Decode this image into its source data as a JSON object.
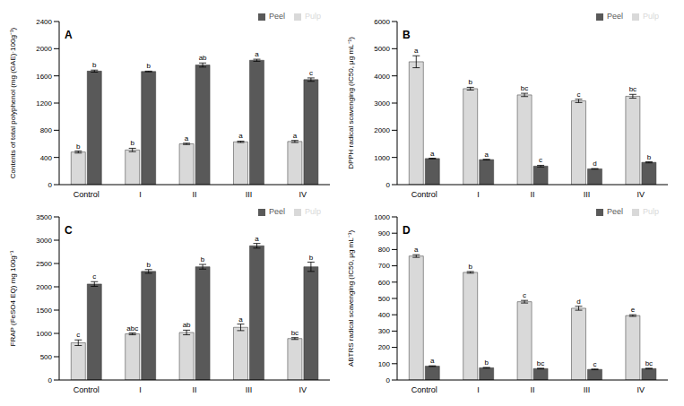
{
  "chart_data": [
    {
      "type": "bar",
      "title": "A",
      "y_label": "Contents of total polyphenol (mg (GAE)·100g⁻¹)",
      "categories": [
        "Control",
        "I",
        "II",
        "III",
        "IV"
      ],
      "series": [
        {
          "name": "Pulp",
          "color": "#d9d9d9",
          "values": [
            480,
            510,
            600,
            630,
            635
          ],
          "errors": [
            15,
            25,
            10,
            10,
            15
          ],
          "letters": [
            "b",
            "b",
            "a",
            "a",
            "a"
          ]
        },
        {
          "name": "Peel",
          "color": "#595959",
          "values": [
            1670,
            1665,
            1760,
            1830,
            1545
          ],
          "errors": [
            15,
            5,
            30,
            15,
            25
          ],
          "letters": [
            "b",
            "b",
            "ab",
            "a",
            "c"
          ]
        }
      ],
      "ylim": [
        0,
        2400
      ],
      "yticks": [
        0,
        400,
        800,
        1200,
        1600,
        2000,
        2400
      ],
      "grid": false,
      "legend": "upper right"
    },
    {
      "type": "bar",
      "title": "B",
      "y_label": "DPPH radical scavenging (IC50, μg mL⁻¹)",
      "categories": [
        "Control",
        "I",
        "II",
        "III",
        "IV"
      ],
      "series": [
        {
          "name": "Pulp",
          "color": "#d9d9d9",
          "values": [
            4520,
            3530,
            3300,
            3080,
            3250
          ],
          "errors": [
            220,
            50,
            60,
            60,
            70
          ],
          "letters": [
            "a",
            "b",
            "bc",
            "c",
            "bc"
          ]
        },
        {
          "name": "Peel",
          "color": "#595959",
          "values": [
            960,
            920,
            680,
            580,
            820
          ],
          "errors": [
            10,
            10,
            30,
            10,
            20
          ],
          "letters": [
            "a",
            "a",
            "c",
            "d",
            "b"
          ]
        }
      ],
      "ylim": [
        0,
        6000
      ],
      "yticks": [
        0,
        1000,
        2000,
        3000,
        4000,
        5000,
        6000
      ],
      "grid": false,
      "legend": "upper right"
    },
    {
      "type": "bar",
      "title": "C",
      "y_label": "FRAP (FeSO4 EQ) mg 100g⁻¹",
      "categories": [
        "Control",
        "I",
        "II",
        "III",
        "IV"
      ],
      "series": [
        {
          "name": "Pulp",
          "color": "#d9d9d9",
          "values": [
            800,
            990,
            1020,
            1130,
            890
          ],
          "errors": [
            60,
            20,
            50,
            70,
            20
          ],
          "letters": [
            "c",
            "abc",
            "ab",
            "a",
            "bc"
          ]
        },
        {
          "name": "Peel",
          "color": "#595959",
          "values": [
            2060,
            2330,
            2430,
            2880,
            2430
          ],
          "errors": [
            50,
            40,
            50,
            50,
            100
          ],
          "letters": [
            "c",
            "b",
            "b",
            "a",
            "b"
          ]
        }
      ],
      "ylim": [
        0,
        3500
      ],
      "yticks": [
        0,
        500,
        1000,
        1500,
        2000,
        2500,
        3000,
        3500
      ],
      "grid": false,
      "legend": "upper right"
    },
    {
      "type": "bar",
      "title": "D",
      "y_label": "ABTRS radical scavenging (IC50, μg mL⁻¹)",
      "categories": [
        "Control",
        "I",
        "II",
        "III",
        "IV"
      ],
      "series": [
        {
          "name": "Pulp",
          "color": "#d9d9d9",
          "values": [
            760,
            660,
            480,
            440,
            395
          ],
          "errors": [
            8,
            5,
            8,
            12,
            5
          ],
          "letters": [
            "a",
            "b",
            "c",
            "d",
            "e"
          ]
        },
        {
          "name": "Peel",
          "color": "#595959",
          "values": [
            85,
            75,
            70,
            65,
            70
          ],
          "errors": [
            2,
            2,
            2,
            2,
            2
          ],
          "letters": [
            "a",
            "b",
            "bc",
            "c",
            "bc"
          ]
        }
      ],
      "ylim": [
        0,
        1000
      ],
      "yticks": [
        0,
        100,
        200,
        300,
        400,
        500,
        600,
        700,
        800,
        900,
        1000
      ],
      "grid": false,
      "legend": "upper right"
    }
  ]
}
